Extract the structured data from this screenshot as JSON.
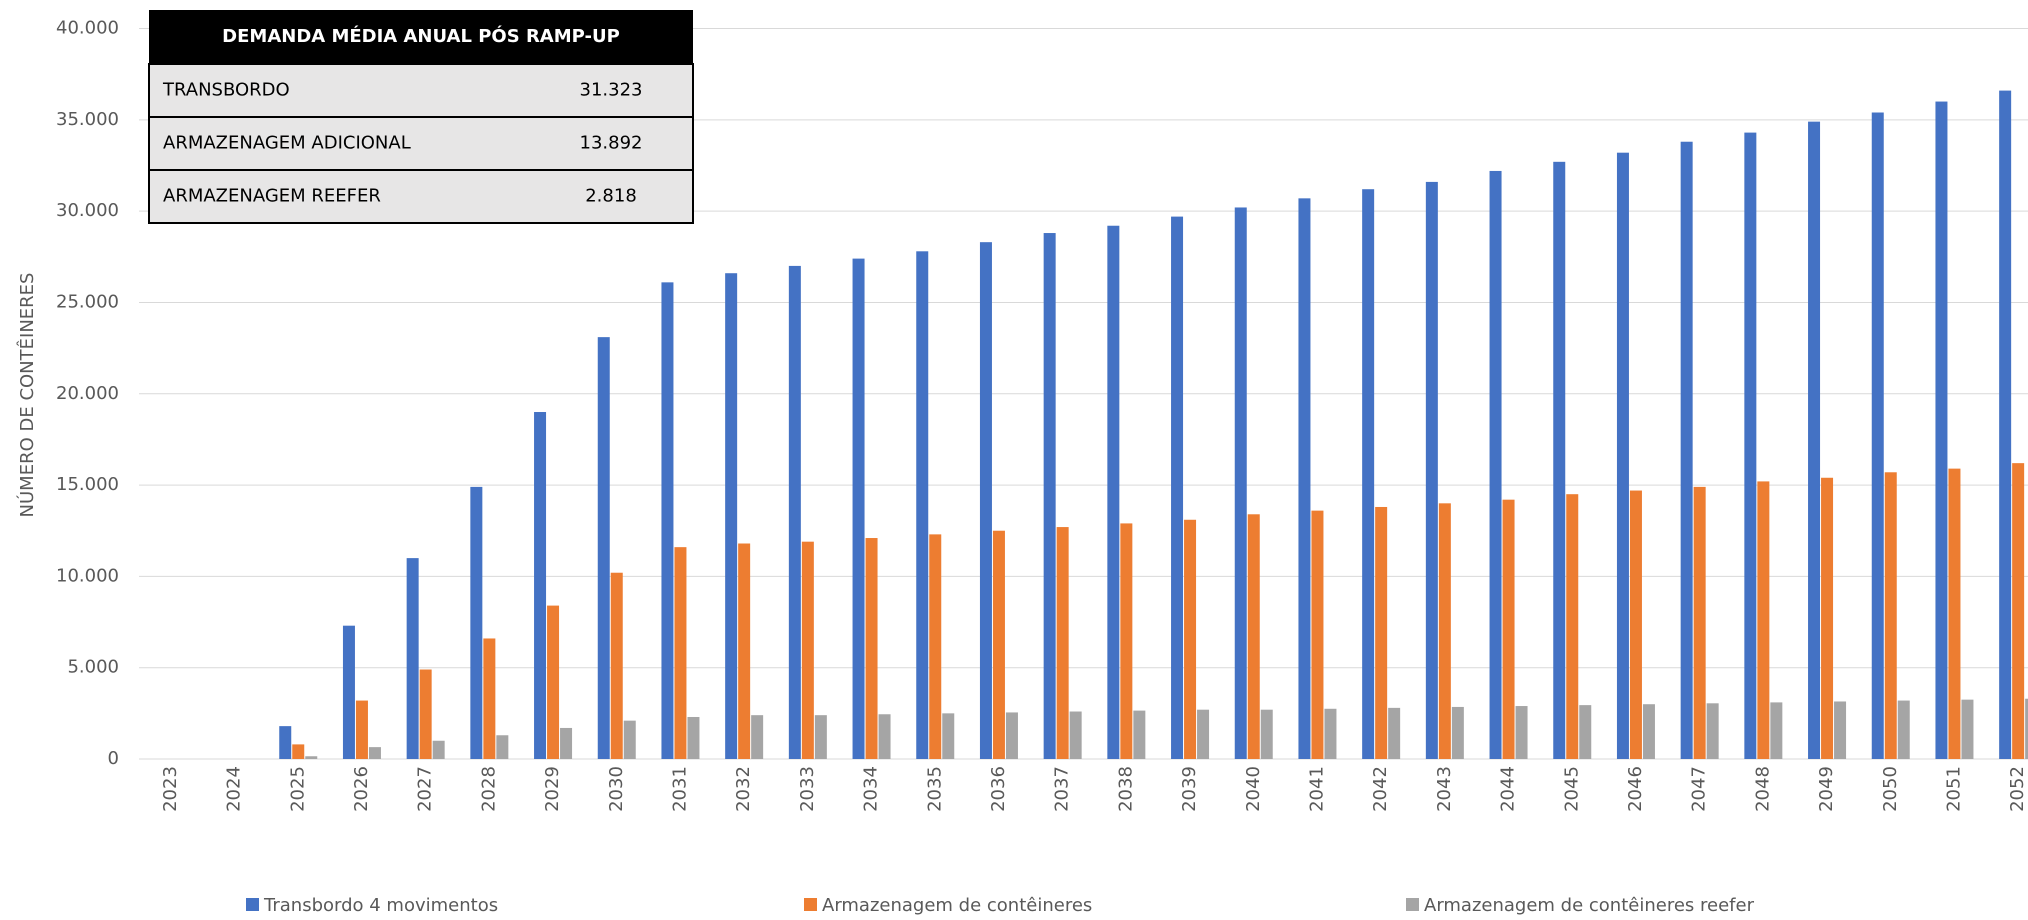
{
  "chart_data": {
    "type": "bar",
    "y_label": "NÚMERO DE CONTÊINERES",
    "categories": [
      "2023",
      "2024",
      "2025",
      "2026",
      "2027",
      "2028",
      "2029",
      "2030",
      "2031",
      "2032",
      "2033",
      "2034",
      "2035",
      "2036",
      "2037",
      "2038",
      "2039",
      "2040",
      "2041",
      "2042",
      "2043",
      "2044",
      "2045",
      "2046",
      "2047",
      "2048",
      "2049",
      "2050",
      "2051",
      "2052"
    ],
    "series": [
      {
        "name": "Transbordo 4 movimentos",
        "color": "#4472c4",
        "values": [
          0,
          0,
          1800,
          7300,
          11000,
          14900,
          19000,
          23100,
          26100,
          26600,
          27000,
          27400,
          27800,
          28300,
          28800,
          29200,
          29700,
          30200,
          30700,
          31200,
          31600,
          32200,
          32700,
          33200,
          33800,
          34300,
          34900,
          35400,
          36000,
          36600
        ]
      },
      {
        "name": "Armazenagem de contêineres",
        "color": "#ed7d31",
        "values": [
          0,
          0,
          800,
          3200,
          4900,
          6600,
          8400,
          10200,
          11600,
          11800,
          11900,
          12100,
          12300,
          12500,
          12700,
          12900,
          13100,
          13400,
          13600,
          13800,
          14000,
          14200,
          14500,
          14700,
          14900,
          15200,
          15400,
          15700,
          15900,
          16200
        ]
      },
      {
        "name": "Armazenagem de contêineres reefer",
        "color": "#a5a5a5",
        "values": [
          0,
          0,
          150,
          650,
          1000,
          1300,
          1700,
          2100,
          2300,
          2400,
          2400,
          2450,
          2500,
          2550,
          2600,
          2650,
          2700,
          2700,
          2750,
          2800,
          2850,
          2900,
          2950,
          3000,
          3050,
          3100,
          3150,
          3200,
          3250,
          3300
        ]
      }
    ],
    "ylim": [
      0,
      40000
    ],
    "yticks": [
      0,
      {
        "value": 5000,
        "label": "5.000"
      },
      {
        "value": 10000,
        "label": "10.000"
      },
      {
        "value": 15000,
        "label": "15.000"
      },
      {
        "value": 20000,
        "label": "20.000"
      },
      {
        "value": 25000,
        "label": "25.000"
      },
      {
        "value": 30000,
        "label": "30.000"
      },
      {
        "value": 35000,
        "label": "35.000"
      },
      {
        "value": 40000,
        "label": "40.000"
      }
    ],
    "grid": true,
    "table": {
      "header": "DEMANDA MÉDIA ANUAL PÓS RAMP-UP",
      "rows": [
        [
          "TRANSBORDO",
          "31.323"
        ],
        [
          "ARMAZENAGEM ADICIONAL",
          "13.892"
        ],
        [
          "ARMAZENAGEM REEFER",
          "2.818"
        ]
      ]
    }
  }
}
